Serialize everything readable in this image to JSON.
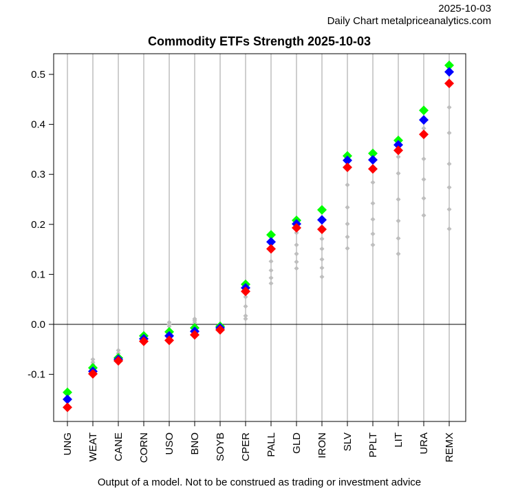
{
  "header": {
    "date": "2025-10-03",
    "source": "Daily Chart metalpriceanalytics.com"
  },
  "footer": {
    "disclaimer": "Output of a model. Not to be construed as trading or investment advice"
  },
  "colors": {
    "green": "#00ff00",
    "blue": "#0000ff",
    "red": "#ff0000",
    "grey": "#bebebe"
  },
  "chart_data": {
    "type": "scatter",
    "title": "Commodity ETFs Strength 2025-10-03",
    "xlabel": "",
    "ylabel": "",
    "ylim": [
      -0.19,
      0.545
    ],
    "yticks": [
      -0.1,
      0.0,
      0.1,
      0.2,
      0.3,
      0.4,
      0.5
    ],
    "ytick_labels": [
      "-0.1",
      "0.0",
      "0.1",
      "0.2",
      "0.3",
      "0.4",
      "0.5"
    ],
    "grid": "vertical lines per category",
    "categories": [
      "UNG",
      "WEAT",
      "CANE",
      "CORN",
      "USO",
      "BNO",
      "SOYB",
      "CPER",
      "PALL",
      "GLD",
      "IRON",
      "SLV",
      "PPLT",
      "LIT",
      "URA",
      "REMX"
    ],
    "series": [
      {
        "name": "green",
        "values": [
          -0.136,
          -0.087,
          -0.067,
          -0.023,
          -0.015,
          -0.007,
          -0.004,
          0.08,
          0.179,
          0.208,
          0.229,
          0.337,
          0.342,
          0.368,
          0.428,
          0.518
        ]
      },
      {
        "name": "blue",
        "values": [
          -0.15,
          -0.094,
          -0.07,
          -0.029,
          -0.023,
          -0.014,
          -0.007,
          0.073,
          0.165,
          0.201,
          0.209,
          0.328,
          0.329,
          0.359,
          0.409,
          0.505
        ]
      },
      {
        "name": "red",
        "values": [
          -0.166,
          -0.099,
          -0.073,
          -0.034,
          -0.032,
          -0.021,
          -0.011,
          0.066,
          0.151,
          0.193,
          0.19,
          0.314,
          0.311,
          0.348,
          0.38,
          0.482
        ]
      }
    ],
    "grey_points": [
      [],
      [
        -0.07,
        -0.076,
        -0.08
      ],
      [
        -0.052,
        -0.058,
        -0.063
      ],
      [],
      [
        0.004,
        0.0,
        -0.004
      ],
      [
        0.011,
        0.008,
        0.004
      ],
      [],
      [
        0.055,
        0.036,
        0.017,
        0.011
      ],
      [
        0.126,
        0.108,
        0.093,
        0.082
      ],
      [
        0.183,
        0.159,
        0.141,
        0.125,
        0.112
      ],
      [
        0.171,
        0.151,
        0.13,
        0.113,
        0.095
      ],
      [
        0.279,
        0.234,
        0.201,
        0.175,
        0.152
      ],
      [
        0.284,
        0.242,
        0.21,
        0.181,
        0.159
      ],
      [
        0.335,
        0.302,
        0.25,
        0.207,
        0.172,
        0.141
      ],
      [
        0.392,
        0.331,
        0.29,
        0.252,
        0.218
      ],
      [
        0.434,
        0.383,
        0.321,
        0.274,
        0.23,
        0.191
      ]
    ]
  }
}
